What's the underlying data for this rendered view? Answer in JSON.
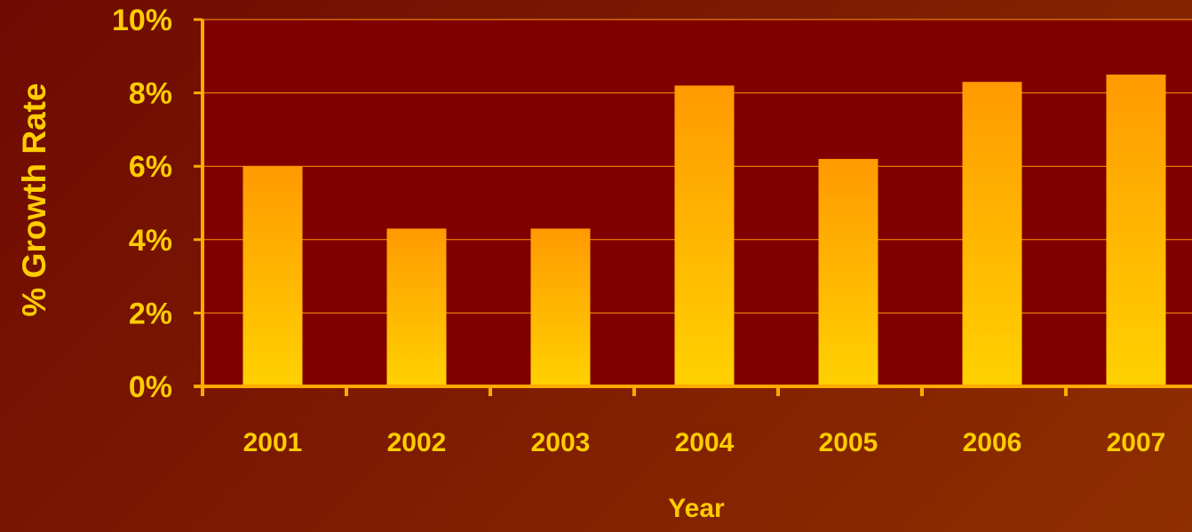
{
  "chart_data": {
    "type": "bar",
    "categories": [
      "2001",
      "2002",
      "2003",
      "2004",
      "2005",
      "2006",
      "2007"
    ],
    "values": [
      6.0,
      4.3,
      4.3,
      8.2,
      6.2,
      8.3,
      8.5
    ],
    "title": "",
    "xlabel": "Year",
    "ylabel": "% Growth Rate",
    "ylim": [
      0,
      10
    ],
    "yticks": [
      "0%",
      "2%",
      "4%",
      "6%",
      "8%",
      "10%"
    ],
    "grid": true,
    "legend": "none"
  },
  "colors": {
    "plot_background": "#800000",
    "bar_top": "#ff9a00",
    "bar_bottom": "#ffd100",
    "text": "#ffcc00",
    "axis": "#ffaa00",
    "gridline": "#ff9900"
  }
}
